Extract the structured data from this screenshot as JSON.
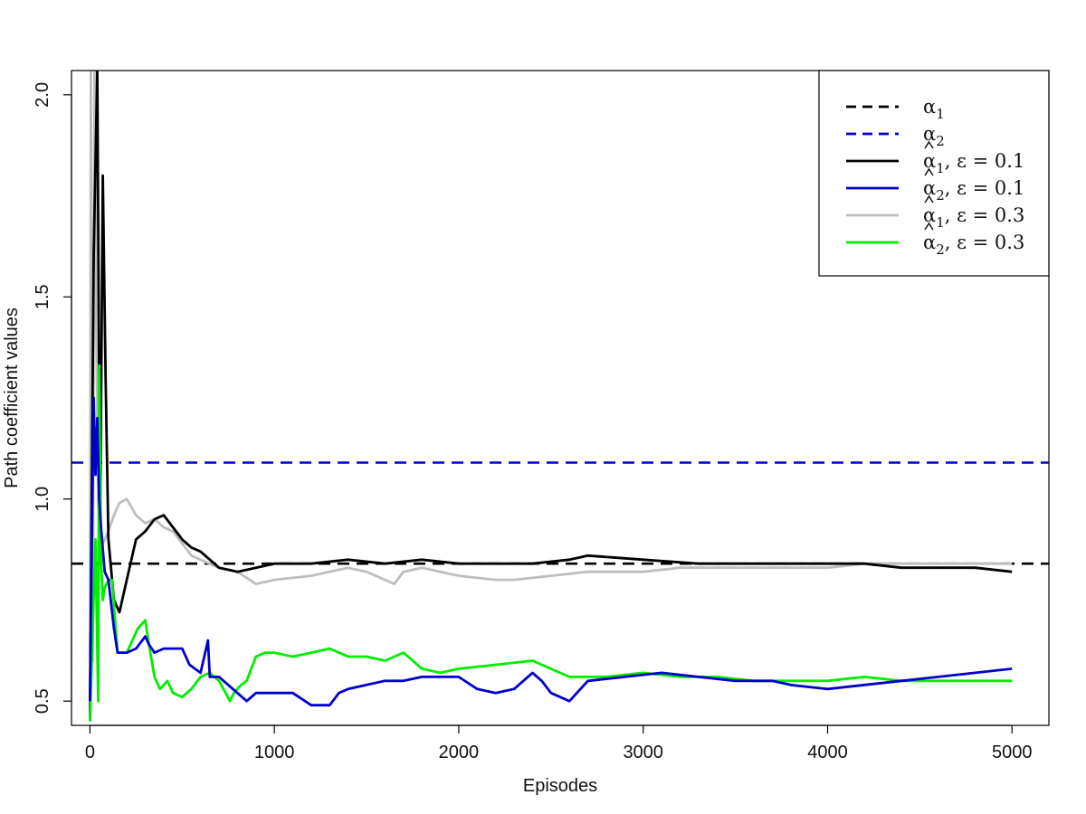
{
  "chart_data": {
    "type": "line",
    "xlabel": "Episodes",
    "ylabel": "Path coefficient values",
    "xlim": [
      -100,
      5200
    ],
    "ylim": [
      0.44,
      2.06
    ],
    "xticks": [
      0,
      1000,
      2000,
      3000,
      4000,
      5000
    ],
    "yticks": [
      0.5,
      1.0,
      1.5,
      2.0
    ],
    "ytick_labels": [
      "0.5",
      "1.0",
      "1.5",
      "2.0"
    ],
    "grid": false,
    "legend_position": "top-right",
    "reference_lines": [
      {
        "name_base": "α",
        "sub": "1",
        "hat": false,
        "suffix": "",
        "value": 0.84,
        "color": "#000000",
        "dashed": true
      },
      {
        "name_base": "α",
        "sub": "2",
        "hat": false,
        "suffix": "",
        "value": 1.09,
        "color": "#0000CD",
        "dashed": true
      }
    ],
    "series": [
      {
        "name_base": "α",
        "sub": "1",
        "hat": true,
        "suffix": ", ε = 0.1",
        "color": "#000000",
        "dashed": false,
        "x": [
          0,
          20,
          40,
          55,
          70,
          85,
          100,
          130,
          160,
          200,
          250,
          300,
          350,
          400,
          450,
          500,
          550,
          600,
          700,
          800,
          900,
          1000,
          1200,
          1400,
          1600,
          1800,
          2000,
          2200,
          2400,
          2600,
          2700,
          3000,
          3300,
          3600,
          3900,
          4000,
          4200,
          4400,
          4600,
          4800,
          5000
        ],
        "y": [
          0.45,
          1.6,
          2.06,
          0.9,
          1.8,
          1.3,
          0.9,
          0.75,
          0.72,
          0.8,
          0.9,
          0.92,
          0.95,
          0.96,
          0.93,
          0.9,
          0.88,
          0.87,
          0.83,
          0.82,
          0.83,
          0.84,
          0.84,
          0.85,
          0.84,
          0.85,
          0.84,
          0.84,
          0.84,
          0.85,
          0.86,
          0.85,
          0.84,
          0.84,
          0.84,
          0.84,
          0.84,
          0.83,
          0.83,
          0.83,
          0.82
        ]
      },
      {
        "name_base": "α",
        "sub": "2",
        "hat": true,
        "suffix": ", ε = 0.1",
        "color": "#0000CD",
        "dashed": false,
        "x": [
          0,
          20,
          30,
          40,
          50,
          60,
          80,
          100,
          130,
          150,
          200,
          250,
          300,
          320,
          350,
          400,
          450,
          500,
          540,
          600,
          640,
          650,
          700,
          800,
          850,
          900,
          1000,
          1100,
          1200,
          1300,
          1350,
          1400,
          1500,
          1600,
          1700,
          1800,
          2000,
          2100,
          2200,
          2300,
          2400,
          2450,
          2500,
          2600,
          2700,
          2900,
          3100,
          3300,
          3500,
          3700,
          3800,
          4000,
          4200,
          4400,
          4600,
          4800,
          5000
        ],
        "y": [
          0.5,
          1.25,
          1.06,
          1.2,
          1.0,
          0.93,
          0.82,
          0.8,
          0.68,
          0.62,
          0.62,
          0.63,
          0.66,
          0.64,
          0.62,
          0.63,
          0.63,
          0.63,
          0.59,
          0.57,
          0.65,
          0.56,
          0.56,
          0.52,
          0.5,
          0.52,
          0.52,
          0.52,
          0.49,
          0.49,
          0.52,
          0.53,
          0.54,
          0.55,
          0.55,
          0.56,
          0.56,
          0.53,
          0.52,
          0.53,
          0.57,
          0.55,
          0.52,
          0.5,
          0.55,
          0.56,
          0.57,
          0.56,
          0.55,
          0.55,
          0.54,
          0.53,
          0.54,
          0.55,
          0.56,
          0.57,
          0.58
        ]
      },
      {
        "name_base": "α",
        "sub": "1",
        "hat": true,
        "suffix": ", ε = 0.3",
        "color": "#BEBEBE",
        "dashed": false,
        "x": [
          0,
          5,
          15,
          25,
          35,
          45,
          60,
          80,
          100,
          130,
          160,
          200,
          250,
          300,
          350,
          400,
          450,
          500,
          550,
          600,
          700,
          800,
          900,
          1000,
          1200,
          1400,
          1500,
          1600,
          1650,
          1700,
          1800,
          2000,
          2200,
          2300,
          2500,
          2700,
          3000,
          3200,
          3400,
          3600,
          3800,
          4000,
          4200,
          4400,
          4600,
          4800,
          5000
        ],
        "y": [
          0.45,
          2.06,
          0.6,
          2.06,
          1.4,
          1.0,
          0.88,
          0.9,
          0.92,
          0.96,
          0.99,
          1.0,
          0.96,
          0.94,
          0.95,
          0.93,
          0.92,
          0.89,
          0.86,
          0.85,
          0.83,
          0.82,
          0.79,
          0.8,
          0.81,
          0.83,
          0.82,
          0.8,
          0.79,
          0.82,
          0.83,
          0.81,
          0.8,
          0.8,
          0.81,
          0.82,
          0.82,
          0.83,
          0.83,
          0.83,
          0.83,
          0.83,
          0.84,
          0.84,
          0.84,
          0.84,
          0.84
        ]
      },
      {
        "name_base": "α",
        "sub": "2",
        "hat": true,
        "suffix": ", ε = 0.3",
        "color": "#00EE00",
        "dashed": false,
        "x": [
          0,
          30,
          45,
          50,
          60,
          70,
          80,
          100,
          120,
          150,
          180,
          200,
          220,
          260,
          300,
          320,
          350,
          380,
          420,
          450,
          500,
          550,
          600,
          650,
          700,
          760,
          780,
          820,
          850,
          900,
          950,
          1000,
          1100,
          1200,
          1300,
          1400,
          1500,
          1600,
          1700,
          1750,
          1800,
          1900,
          2000,
          2200,
          2400,
          2600,
          2800,
          3000,
          3200,
          3400,
          3600,
          3800,
          4000,
          4200,
          4400,
          4600,
          4800,
          5000
        ],
        "y": [
          0.45,
          0.9,
          0.5,
          1.33,
          0.85,
          0.75,
          0.78,
          0.8,
          0.8,
          0.62,
          0.62,
          0.62,
          0.64,
          0.68,
          0.7,
          0.64,
          0.56,
          0.53,
          0.55,
          0.52,
          0.51,
          0.53,
          0.56,
          0.57,
          0.55,
          0.5,
          0.52,
          0.54,
          0.55,
          0.61,
          0.62,
          0.62,
          0.61,
          0.62,
          0.63,
          0.61,
          0.61,
          0.6,
          0.62,
          0.6,
          0.58,
          0.57,
          0.58,
          0.59,
          0.6,
          0.56,
          0.56,
          0.57,
          0.56,
          0.56,
          0.55,
          0.55,
          0.55,
          0.56,
          0.55,
          0.55,
          0.55,
          0.55
        ]
      }
    ]
  }
}
